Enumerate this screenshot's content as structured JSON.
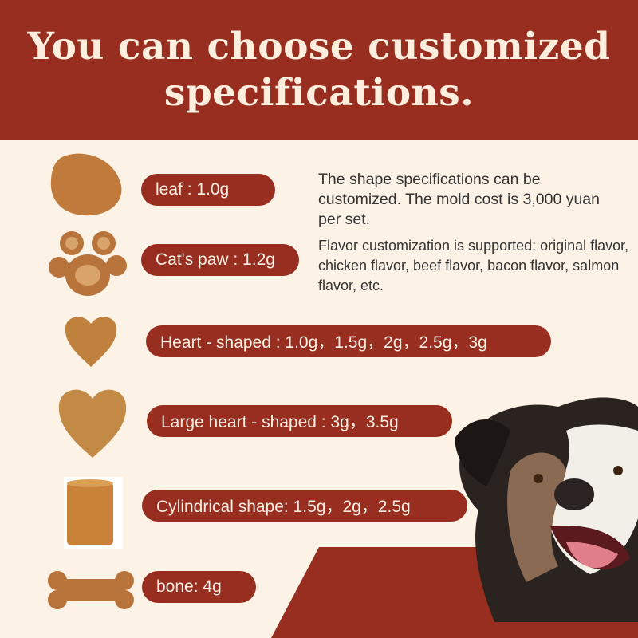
{
  "header": {
    "title": "You can choose customized specifications."
  },
  "specs": [
    {
      "label": "leaf : 1.0g",
      "shape": "leaf"
    },
    {
      "label": "Cat's paw : 1.2g",
      "shape": "cat-paw"
    },
    {
      "label": "Heart - shaped : 1.0g，1.5g，2g，2.5g，3g",
      "shape": "heart"
    },
    {
      "label": "Large heart - shaped : 3g，3.5g",
      "shape": "large-heart"
    },
    {
      "label": "Cylindrical shape: 1.5g，2g，2.5g",
      "shape": "cylinder"
    },
    {
      "label": "bone: 4g",
      "shape": "bone"
    }
  ],
  "description": {
    "mold": "The shape specifications can be customized. The mold cost is 3,000 yuan per set.",
    "flavor": "Flavor customization is supported: original flavor, chicken flavor, beef flavor, bacon flavor, salmon flavor, etc."
  },
  "colors": {
    "brand_red": "#972e20",
    "background": "#fdf2e6",
    "treat": "#c07a3c"
  }
}
